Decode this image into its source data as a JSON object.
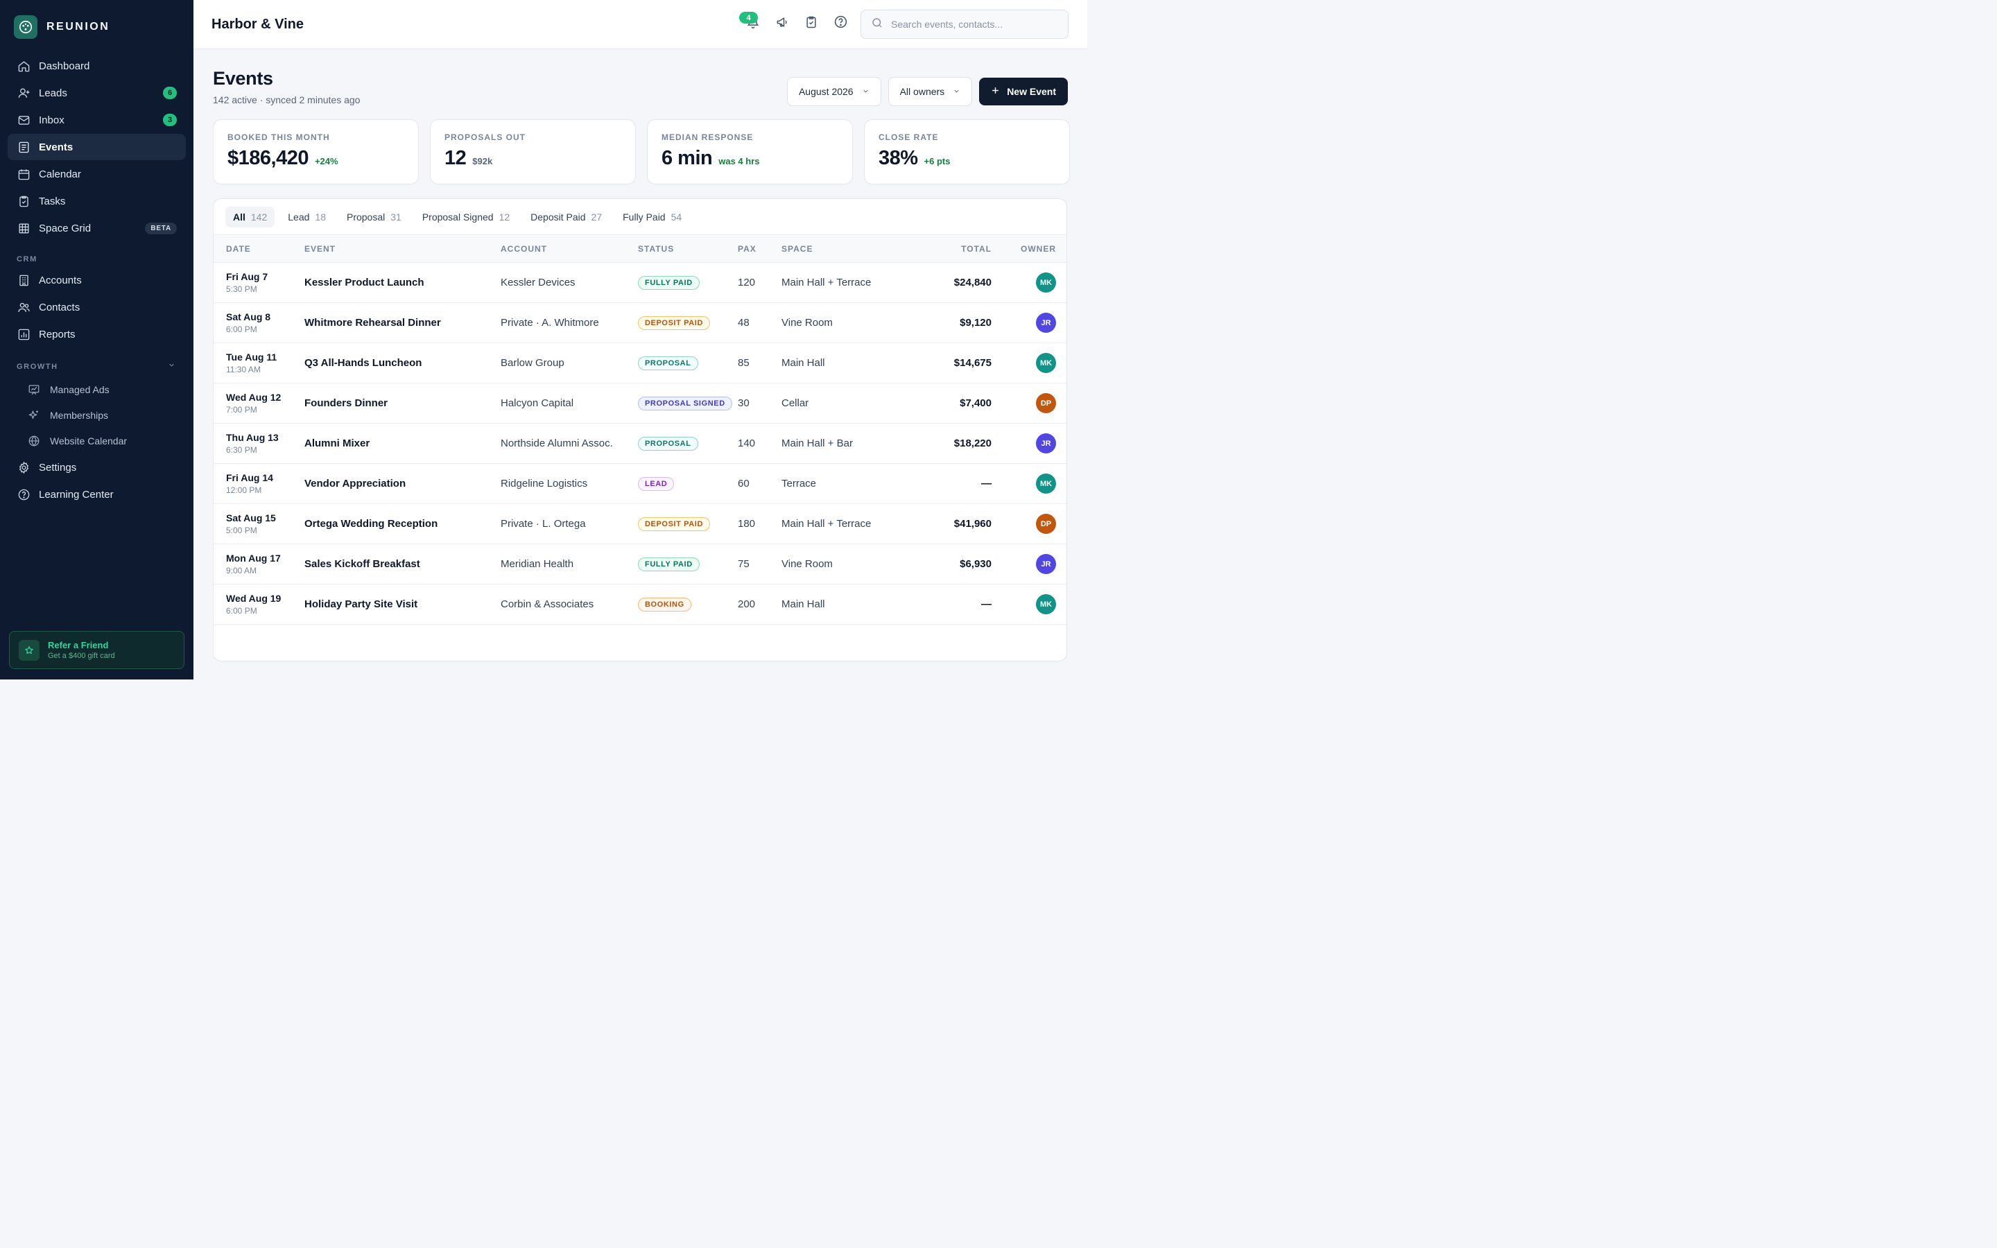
{
  "brand": {
    "name": "REUNION"
  },
  "sidebar": {
    "nav": [
      {
        "label": "Dashboard",
        "icon": "home-icon"
      },
      {
        "label": "Leads",
        "icon": "user-plus-icon",
        "badge": "6"
      },
      {
        "label": "Inbox",
        "icon": "mail-icon",
        "badge": "3"
      },
      {
        "label": "Events",
        "icon": "events-icon",
        "active": true
      },
      {
        "label": "Calendar",
        "icon": "calendar-icon"
      },
      {
        "label": "Tasks",
        "icon": "clipboard-check-icon"
      },
      {
        "label": "Space Grid",
        "icon": "grid-icon",
        "tag": "BETA"
      }
    ],
    "crm_label": "CRM",
    "crm": [
      {
        "label": "Accounts",
        "icon": "building-icon"
      },
      {
        "label": "Contacts",
        "icon": "users-icon"
      },
      {
        "label": "Reports",
        "icon": "bar-chart-icon"
      }
    ],
    "growth_label": "GROWTH",
    "growth": [
      {
        "label": "Managed Ads",
        "icon": "presentation-chart-icon"
      },
      {
        "label": "Memberships",
        "icon": "sparkles-icon"
      },
      {
        "label": "Website Calendar",
        "icon": "globe-icon"
      }
    ],
    "bottom": [
      {
        "label": "Settings",
        "icon": "gear-icon"
      },
      {
        "label": "Learning Center",
        "icon": "help-circle-icon"
      }
    ],
    "refer": {
      "title": "Refer a Friend",
      "subtitle": "Get a $400 gift card"
    }
  },
  "topbar": {
    "workspace": "Harbor & Vine",
    "notifications": "4",
    "search_placeholder": "Search events, contacts..."
  },
  "page": {
    "title": "Events",
    "subtitle": "142 active · synced 2 minutes ago",
    "month_select": "August 2026",
    "owner_select": "All owners",
    "new_event": "New Event"
  },
  "stats": [
    {
      "label": "BOOKED THIS MONTH",
      "value": "$186,420",
      "delta": "+24%",
      "tone": "green"
    },
    {
      "label": "PROPOSALS OUT",
      "value": "12",
      "delta": "$92k",
      "tone": "muted"
    },
    {
      "label": "MEDIAN RESPONSE",
      "value": "6 min",
      "delta": "was 4 hrs",
      "tone": "green"
    },
    {
      "label": "CLOSE RATE",
      "value": "38%",
      "delta": "+6 pts",
      "tone": "green"
    }
  ],
  "tabs": [
    {
      "label": "All",
      "count": "142",
      "active": true
    },
    {
      "label": "Lead",
      "count": "18"
    },
    {
      "label": "Proposal",
      "count": "31"
    },
    {
      "label": "Proposal Signed",
      "count": "12"
    },
    {
      "label": "Deposit Paid",
      "count": "27"
    },
    {
      "label": "Fully Paid",
      "count": "54"
    }
  ],
  "table": {
    "columns": {
      "date": "DATE",
      "event": "EVENT",
      "account": "ACCOUNT",
      "status": "STATUS",
      "pax": "PAX",
      "space": "SPACE",
      "total": "TOTAL",
      "owner": "OWNER"
    },
    "rows": [
      {
        "day": "Fri Aug 7",
        "time": "5:30 PM",
        "event": "Kessler Product Launch",
        "account": "Kessler Devices",
        "status": "FULLY PAID",
        "status_key": "fullypaid",
        "pax": "120",
        "space": "Main Hall + Terrace",
        "total": "$24,840",
        "owner": "MK",
        "owner_color": "#0f9488"
      },
      {
        "day": "Sat Aug 8",
        "time": "6:00 PM",
        "event": "Whitmore Rehearsal Dinner",
        "account": "Private · A. Whitmore",
        "status": "DEPOSIT PAID",
        "status_key": "depositpaid",
        "pax": "48",
        "space": "Vine Room",
        "total": "$9,120",
        "owner": "JR",
        "owner_color": "#4f46e5"
      },
      {
        "day": "Tue Aug 11",
        "time": "11:30 AM",
        "event": "Q3 All-Hands Luncheon",
        "account": "Barlow Group",
        "status": "PROPOSAL",
        "status_key": "proposal",
        "pax": "85",
        "space": "Main Hall",
        "total": "$14,675",
        "owner": "MK",
        "owner_color": "#0f9488"
      },
      {
        "day": "Wed Aug 12",
        "time": "7:00 PM",
        "event": "Founders Dinner",
        "account": "Halcyon Capital",
        "status": "PROPOSAL SIGNED",
        "status_key": "proposalsigned",
        "pax": "30",
        "space": "Cellar",
        "total": "$7,400",
        "owner": "DP",
        "owner_color": "#c2570c"
      },
      {
        "day": "Thu Aug 13",
        "time": "6:30 PM",
        "event": "Alumni Mixer",
        "account": "Northside Alumni Assoc.",
        "status": "PROPOSAL",
        "status_key": "proposal",
        "pax": "140",
        "space": "Main Hall + Bar",
        "total": "$18,220",
        "owner": "JR",
        "owner_color": "#4f46e5"
      },
      {
        "day": "Fri Aug 14",
        "time": "12:00 PM",
        "event": "Vendor Appreciation",
        "account": "Ridgeline Logistics",
        "status": "LEAD",
        "status_key": "lead",
        "pax": "60",
        "space": "Terrace",
        "total": "—",
        "owner": "MK",
        "owner_color": "#0f9488"
      },
      {
        "day": "Sat Aug 15",
        "time": "5:00 PM",
        "event": "Ortega Wedding Reception",
        "account": "Private · L. Ortega",
        "status": "DEPOSIT PAID",
        "status_key": "depositpaid",
        "pax": "180",
        "space": "Main Hall + Terrace",
        "total": "$41,960",
        "owner": "DP",
        "owner_color": "#c2570c"
      },
      {
        "day": "Mon Aug 17",
        "time": "9:00 AM",
        "event": "Sales Kickoff Breakfast",
        "account": "Meridian Health",
        "status": "FULLY PAID",
        "status_key": "fullypaid",
        "pax": "75",
        "space": "Vine Room",
        "total": "$6,930",
        "owner": "JR",
        "owner_color": "#4f46e5"
      },
      {
        "day": "Wed Aug 19",
        "time": "6:00 PM",
        "event": "Holiday Party Site Visit",
        "account": "Corbin & Associates",
        "status": "BOOKING",
        "status_key": "booking",
        "pax": "200",
        "space": "Main Hall",
        "total": "—",
        "owner": "MK",
        "owner_color": "#0f9488"
      }
    ]
  }
}
